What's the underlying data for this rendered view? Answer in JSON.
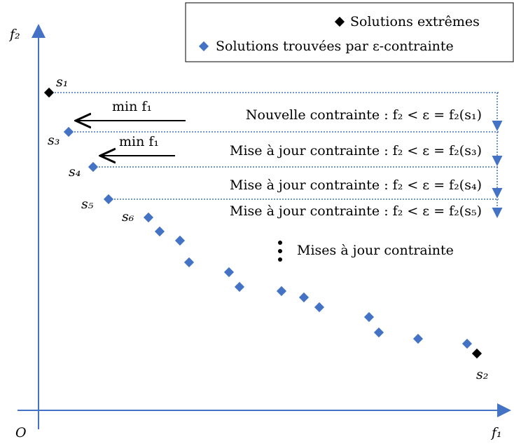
{
  "legend": {
    "items": [
      "Solutions extrêmes",
      "Solutions trouvées par ε-contrainte"
    ]
  },
  "axes": {
    "y_label": "f₂",
    "x_label": "f₁",
    "origin": "O"
  },
  "points": {
    "labels": [
      "s₁",
      "s₃",
      "s₄",
      "s₅",
      "s₆",
      "s₂"
    ]
  },
  "arrows": [
    "min f₁",
    "min f₁"
  ],
  "constraints": [
    "Nouvelle contrainte : f₂ < ε = f₂(s₁)",
    "Mise à jour contrainte : f₂ < ε = f₂(s₃)",
    "Mise à jour contrainte : f₂ < ε = f₂(s₄)",
    "Mise à jour contrainte : f₂ < ε = f₂(s₅)"
  ],
  "note": "Mises à jour contrainte"
}
